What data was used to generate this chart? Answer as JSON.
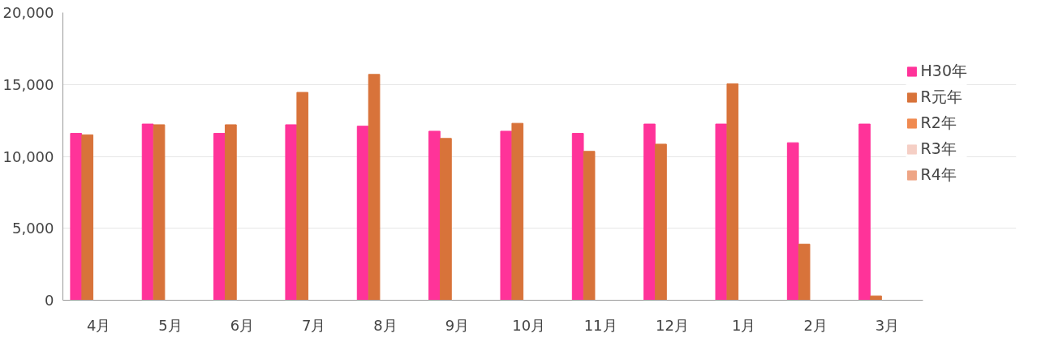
{
  "chart_data": {
    "type": "bar",
    "categories": [
      "4月",
      "5月",
      "6月",
      "7月",
      "8月",
      "9月",
      "10月",
      "11月",
      "12月",
      "1月",
      "2月",
      "3月"
    ],
    "series": [
      {
        "name": "H30年",
        "color": "#ff3399",
        "values": [
          11600,
          12250,
          11600,
          12200,
          12100,
          11750,
          11750,
          11600,
          12250,
          12250,
          10950,
          12250
        ]
      },
      {
        "name": "R元年",
        "color": "#d8733a",
        "values": [
          11500,
          12200,
          12200,
          14450,
          15700,
          11250,
          12300,
          10350,
          10850,
          15050,
          3900,
          300
        ]
      },
      {
        "name": "R2年",
        "color": "#f08a50",
        "values": [
          null,
          null,
          null,
          null,
          null,
          null,
          null,
          null,
          null,
          null,
          null,
          null
        ]
      },
      {
        "name": "R3年",
        "color": "#f5cfc5",
        "values": [
          null,
          null,
          null,
          null,
          null,
          null,
          null,
          null,
          null,
          null,
          null,
          null
        ]
      },
      {
        "name": "R4年",
        "color": "#eea585",
        "values": [
          null,
          null,
          null,
          null,
          null,
          null,
          null,
          null,
          null,
          null,
          null,
          null
        ]
      }
    ],
    "ylim": [
      0,
      20000
    ],
    "yticks": [
      {
        "value": 0,
        "label": "0"
      },
      {
        "value": 5000,
        "label": "5,000"
      },
      {
        "value": 10000,
        "label": "10,000"
      },
      {
        "value": 15000,
        "label": "15,000"
      },
      {
        "value": 20000,
        "label": "20,000"
      }
    ],
    "grid": "y",
    "legend": "right"
  }
}
